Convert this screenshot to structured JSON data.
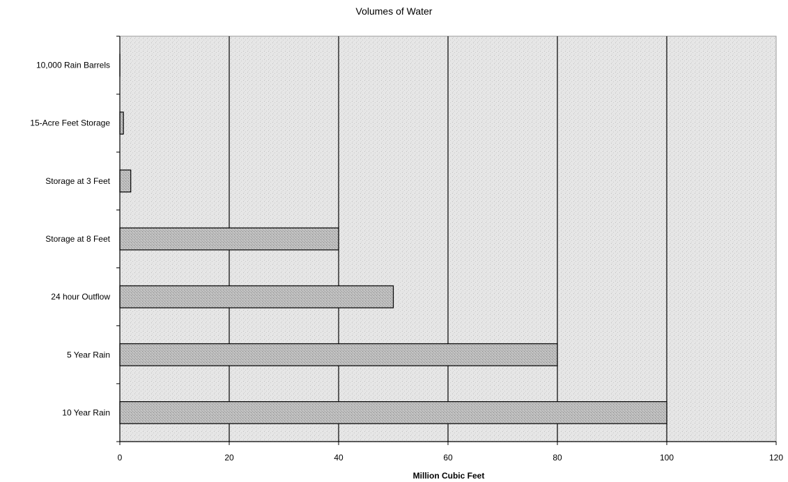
{
  "chart_data": {
    "type": "bar",
    "orientation": "horizontal",
    "title": "Volumes of Water",
    "xlabel": "Million Cubic Feet",
    "ylabel": "",
    "categories": [
      "10,000 Rain Barrels",
      "15-Acre Feet Storage",
      "Storage at 3 Feet",
      "Storage at 8 Feet",
      "24 hour Outflow",
      "5 Year Rain",
      "10 Year Rain"
    ],
    "values": [
      0.01,
      0.65,
      2,
      40,
      50,
      80,
      100
    ],
    "xlim": [
      0,
      120
    ],
    "xticks": [
      0,
      20,
      40,
      60,
      80,
      100,
      120
    ],
    "grid": true,
    "legend": "none",
    "colors": {
      "plot_bg": "#ececec",
      "bar_fill": "#b8b8b8",
      "bar_stroke": "#000000",
      "grid": "#000000"
    }
  }
}
